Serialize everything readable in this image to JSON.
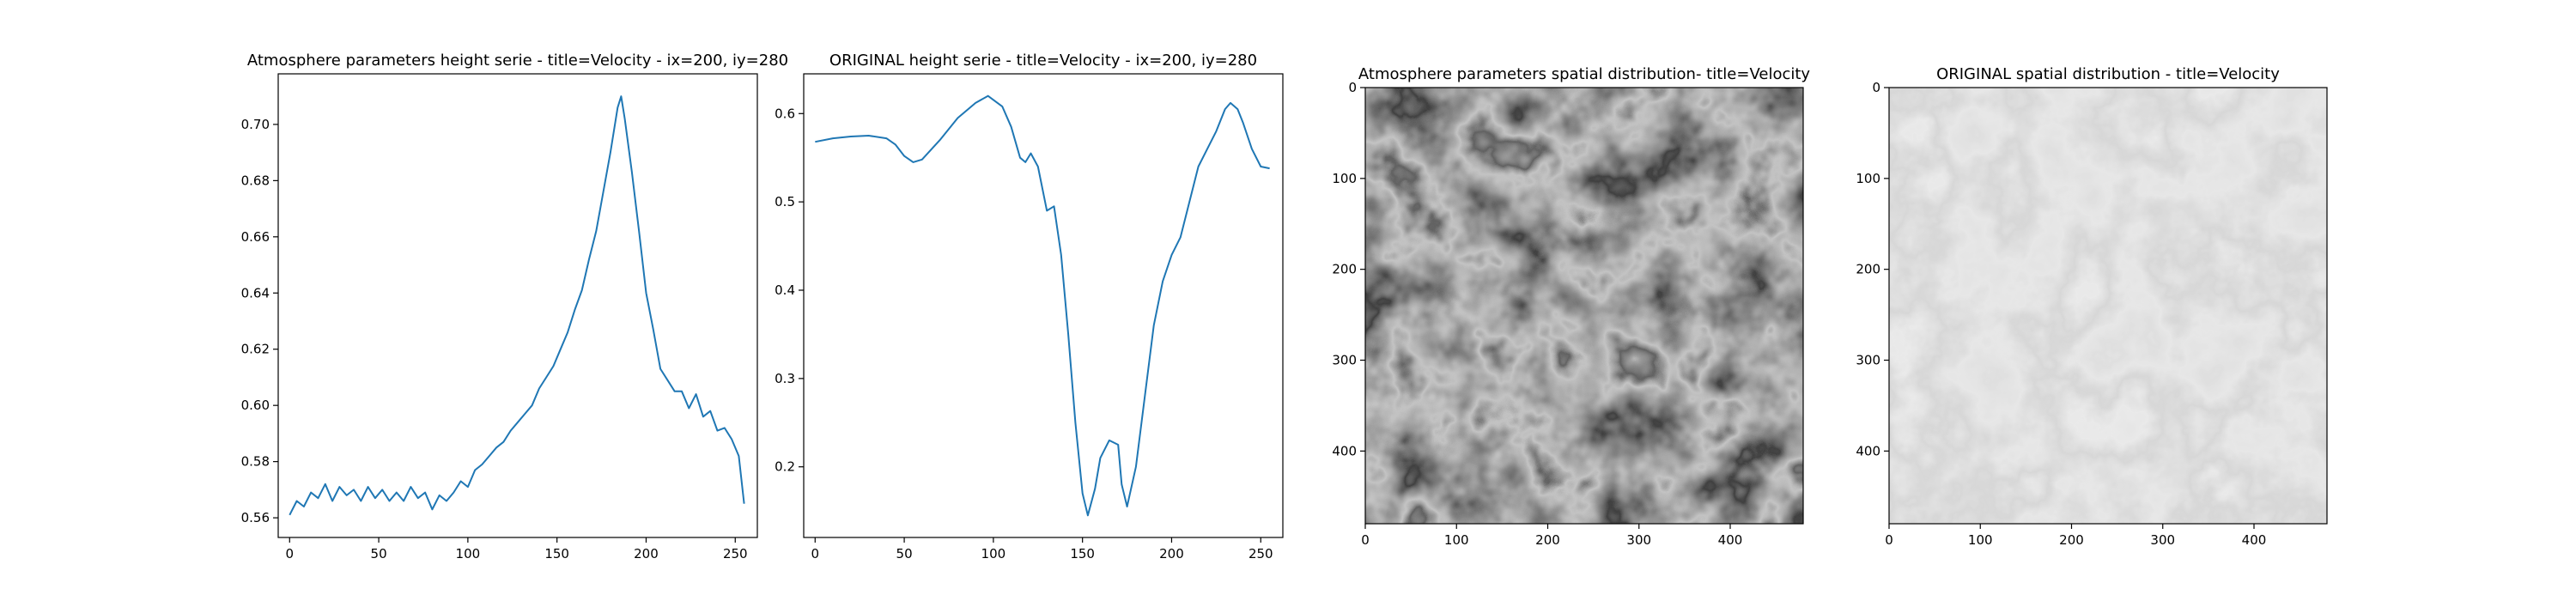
{
  "colors": {
    "line": "#1f77b4",
    "axis": "#000000"
  },
  "chart_data": [
    {
      "type": "line",
      "title": "Atmosphere parameters height serie - title=Velocity - ix=200, iy=280",
      "xlabel": "",
      "ylabel": "",
      "xlim": [
        -6.4,
        262.4
      ],
      "ylim": [
        0.553,
        0.718
      ],
      "xticks": [
        0,
        50,
        100,
        150,
        200,
        250
      ],
      "xtick_labels": [
        "0",
        "50",
        "100",
        "150",
        "200",
        "250"
      ],
      "yticks": [
        0.56,
        0.58,
        0.6,
        0.62,
        0.64,
        0.66,
        0.68,
        0.7
      ],
      "ytick_labels": [
        "0.56",
        "0.58",
        "0.60",
        "0.62",
        "0.64",
        "0.66",
        "0.68",
        "0.70"
      ],
      "grid": false,
      "series": [
        {
          "x": [
            0,
            4,
            8,
            12,
            16,
            20,
            24,
            28,
            32,
            36,
            40,
            44,
            48,
            52,
            56,
            60,
            64,
            68,
            72,
            76,
            80,
            84,
            88,
            92,
            96,
            100,
            104,
            108,
            112,
            116,
            120,
            124,
            128,
            132,
            136,
            140,
            144,
            148,
            152,
            156,
            160,
            164,
            168,
            172,
            176,
            180,
            184,
            186,
            188,
            192,
            196,
            200,
            204,
            208,
            212,
            216,
            220,
            224,
            228,
            232,
            236,
            240,
            244,
            248,
            252,
            255
          ],
          "y": [
            0.561,
            0.566,
            0.564,
            0.569,
            0.567,
            0.572,
            0.566,
            0.571,
            0.568,
            0.57,
            0.566,
            0.571,
            0.567,
            0.57,
            0.566,
            0.569,
            0.566,
            0.571,
            0.567,
            0.569,
            0.563,
            0.568,
            0.566,
            0.569,
            0.573,
            0.571,
            0.577,
            0.579,
            0.582,
            0.585,
            0.587,
            0.591,
            0.594,
            0.597,
            0.6,
            0.606,
            0.61,
            0.614,
            0.62,
            0.626,
            0.634,
            0.641,
            0.652,
            0.662,
            0.676,
            0.69,
            0.706,
            0.71,
            0.702,
            0.683,
            0.662,
            0.64,
            0.627,
            0.613,
            0.609,
            0.605,
            0.605,
            0.599,
            0.604,
            0.596,
            0.598,
            0.591,
            0.592,
            0.588,
            0.582,
            0.565
          ]
        }
      ]
    },
    {
      "type": "line",
      "title": "ORIGINAL height serie - title=Velocity - ix=200, iy=280",
      "xlabel": "",
      "ylabel": "",
      "xlim": [
        -6.4,
        262.4
      ],
      "ylim": [
        0.12,
        0.645
      ],
      "xticks": [
        0,
        50,
        100,
        150,
        200,
        250
      ],
      "xtick_labels": [
        "0",
        "50",
        "100",
        "150",
        "200",
        "250"
      ],
      "yticks": [
        0.2,
        0.3,
        0.4,
        0.5,
        0.6
      ],
      "ytick_labels": [
        "0.2",
        "0.3",
        "0.4",
        "0.5",
        "0.6"
      ],
      "grid": false,
      "series": [
        {
          "x": [
            0,
            10,
            20,
            30,
            40,
            45,
            50,
            55,
            60,
            70,
            80,
            90,
            97,
            105,
            110,
            115,
            118,
            121,
            125,
            130,
            134,
            138,
            142,
            146,
            150,
            153,
            157,
            160,
            165,
            170,
            172,
            175,
            180,
            185,
            190,
            195,
            200,
            205,
            210,
            215,
            220,
            225,
            230,
            233,
            237,
            240,
            245,
            250,
            255
          ],
          "y": [
            0.568,
            0.572,
            0.574,
            0.575,
            0.572,
            0.565,
            0.552,
            0.545,
            0.548,
            0.57,
            0.595,
            0.612,
            0.62,
            0.608,
            0.585,
            0.55,
            0.545,
            0.555,
            0.54,
            0.49,
            0.495,
            0.44,
            0.35,
            0.25,
            0.17,
            0.145,
            0.175,
            0.21,
            0.23,
            0.225,
            0.18,
            0.155,
            0.2,
            0.28,
            0.36,
            0.41,
            0.44,
            0.46,
            0.5,
            0.54,
            0.56,
            0.58,
            0.605,
            0.612,
            0.605,
            0.59,
            0.56,
            0.54,
            0.538
          ]
        }
      ]
    },
    {
      "type": "heatmap",
      "title": "Atmosphere parameters spatial distribution- title=Velocity",
      "xlabel": "",
      "ylabel": "",
      "colormap": "gray",
      "xlim": [
        0,
        480
      ],
      "ylim": [
        480,
        0
      ],
      "xticks": [
        0,
        100,
        200,
        300,
        400
      ],
      "xtick_labels": [
        "0",
        "100",
        "200",
        "300",
        "400"
      ],
      "yticks": [
        0,
        100,
        200,
        300,
        400
      ],
      "ytick_labels": [
        "0",
        "100",
        "200",
        "300",
        "400"
      ]
    },
    {
      "type": "heatmap",
      "title": "ORIGINAL spatial distribution - title=Velocity",
      "xlabel": "",
      "ylabel": "",
      "colormap": "gray",
      "xlim": [
        0,
        480
      ],
      "ylim": [
        480,
        0
      ],
      "xticks": [
        0,
        100,
        200,
        300,
        400
      ],
      "xtick_labels": [
        "0",
        "100",
        "200",
        "300",
        "400"
      ],
      "yticks": [
        0,
        100,
        200,
        300,
        400
      ],
      "ytick_labels": [
        "0",
        "100",
        "200",
        "300",
        "400"
      ]
    }
  ]
}
